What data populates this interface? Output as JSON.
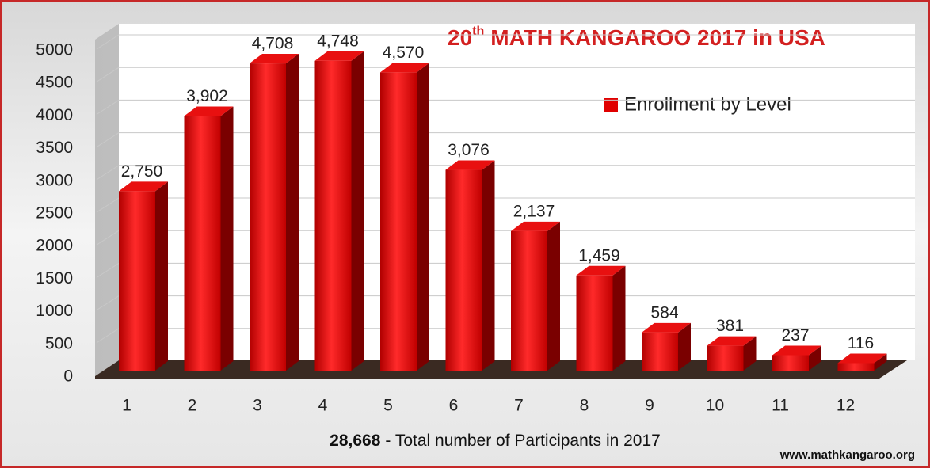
{
  "chart_data": {
    "type": "bar",
    "title_number": "20",
    "title_suffix": "th",
    "title_rest": "MATH KANGAROO 2017 in USA",
    "x_label_total": "28,668",
    "x_label": "- Total number of Participants in 2017",
    "footer": "www.mathkangaroo.org",
    "categories": [
      "1",
      "2",
      "3",
      "4",
      "5",
      "6",
      "7",
      "8",
      "9",
      "10",
      "11",
      "12"
    ],
    "series": [
      {
        "name": "Enrollment by Level",
        "color": "#e00000",
        "values": [
          2750,
          3902,
          4708,
          4748,
          4570,
          3076,
          2137,
          1459,
          584,
          381,
          237,
          116
        ],
        "value_labels": [
          "2,750",
          "3,902",
          "4,708",
          "4,748",
          "4,570",
          "3,076",
          "2,137",
          "1,459",
          "584",
          "381",
          "237",
          "116"
        ]
      }
    ],
    "ylim": [
      0,
      5000
    ],
    "yticks": [
      0,
      500,
      1000,
      1500,
      2000,
      2500,
      3000,
      3500,
      4000,
      4500,
      5000
    ],
    "grid": true
  }
}
